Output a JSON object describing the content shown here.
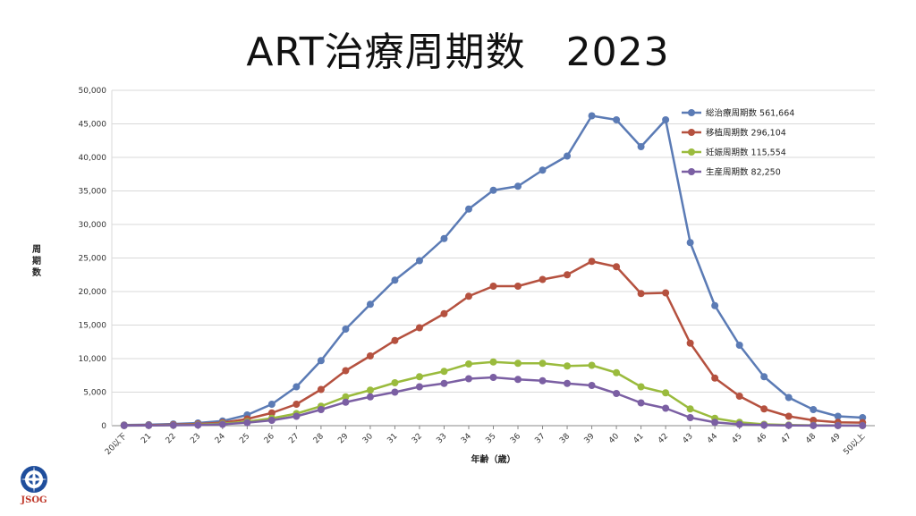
{
  "title": "ART治療周期数　2023",
  "logo_text": "JSOG",
  "chart_data": {
    "type": "line",
    "title": "ART治療周期数　2023",
    "xlabel": "年齢（歳）",
    "ylabel": "周期数",
    "ylim": [
      0,
      50000
    ],
    "yticks": [
      0,
      5000,
      10000,
      15000,
      20000,
      25000,
      30000,
      35000,
      40000,
      45000,
      50000
    ],
    "ytick_labels": [
      "0",
      "5,000",
      "10,000",
      "15,000",
      "20,000",
      "25,000",
      "30,000",
      "35,000",
      "40,000",
      "45,000",
      "50,000"
    ],
    "grid": true,
    "legend_position": "top-right",
    "categories": [
      "20以下",
      "21",
      "22",
      "23",
      "24",
      "25",
      "26",
      "27",
      "28",
      "29",
      "30",
      "31",
      "32",
      "33",
      "34",
      "35",
      "36",
      "37",
      "38",
      "39",
      "40",
      "41",
      "42",
      "43",
      "44",
      "45",
      "46",
      "47",
      "48",
      "49",
      "50以上"
    ],
    "series": [
      {
        "name": "総治療周期数",
        "legend_label": "総治療周期数 561,664",
        "color": "#5b7bb5",
        "values": [
          100,
          150,
          250,
          400,
          700,
          1600,
          3200,
          5800,
          9700,
          14400,
          18100,
          21700,
          24600,
          27900,
          32300,
          35100,
          35700,
          38100,
          40200,
          46200,
          45600,
          41600,
          45600,
          27300,
          17900,
          12000,
          7300,
          4200,
          2400,
          1400,
          1200
        ]
      },
      {
        "name": "移植周期数",
        "legend_label": "移植周期数 296,104",
        "color": "#b5513f",
        "values": [
          50,
          80,
          150,
          250,
          450,
          1000,
          1900,
          3200,
          5400,
          8200,
          10400,
          12700,
          14600,
          16700,
          19300,
          20800,
          20800,
          21800,
          22500,
          24500,
          23700,
          19700,
          19800,
          12300,
          7100,
          4400,
          2500,
          1400,
          800,
          500,
          450
        ]
      },
      {
        "name": "妊娠周期数",
        "legend_label": "妊娠周期数 115,554",
        "color": "#9abb3d",
        "values": [
          20,
          40,
          80,
          150,
          300,
          600,
          1100,
          1800,
          2900,
          4300,
          5300,
          6400,
          7300,
          8100,
          9200,
          9500,
          9300,
          9300,
          8900,
          9000,
          7900,
          5800,
          4900,
          2500,
          1100,
          500,
          200,
          100,
          50,
          30,
          20
        ]
      },
      {
        "name": "生産周期数",
        "legend_label": "生産周期数 82,250",
        "color": "#7b5fa3",
        "values": [
          15,
          30,
          60,
          100,
          200,
          450,
          800,
          1400,
          2400,
          3500,
          4300,
          5000,
          5800,
          6300,
          7000,
          7200,
          6900,
          6700,
          6300,
          6000,
          4800,
          3400,
          2600,
          1200,
          500,
          200,
          80,
          40,
          20,
          10,
          10
        ]
      }
    ]
  }
}
